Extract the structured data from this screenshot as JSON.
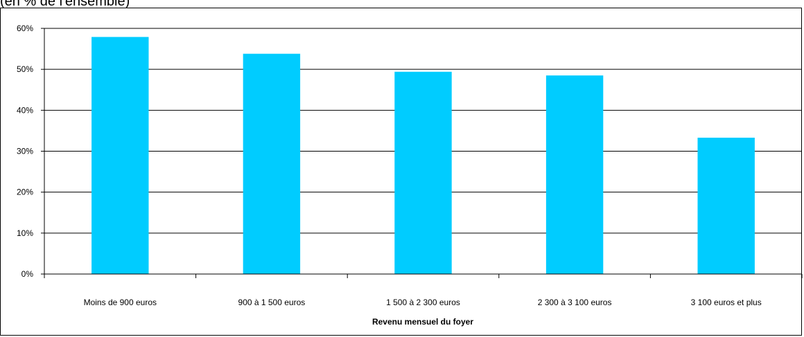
{
  "header": {
    "text": "(en % de l'ensemble)"
  },
  "chart_data": {
    "type": "bar",
    "title": "",
    "xlabel": "Revenu mensuel du foyer",
    "ylabel": "",
    "categories": [
      "Moins de 900 euros",
      "900 à 1 500 euros",
      "1 500 à 2 300 euros",
      "2 300 à 3 100 euros",
      "3 100 euros et plus"
    ],
    "values": [
      57.9,
      53.8,
      49.4,
      48.5,
      33.3
    ],
    "ylim": [
      0,
      60
    ],
    "yticks": [
      0,
      10,
      20,
      30,
      40,
      50,
      60
    ],
    "ytick_labels": [
      "0%",
      "10%",
      "20%",
      "30%",
      "40%",
      "50%",
      "60%"
    ],
    "grid": true,
    "legend": "none",
    "bar_color": "#00ccff"
  }
}
